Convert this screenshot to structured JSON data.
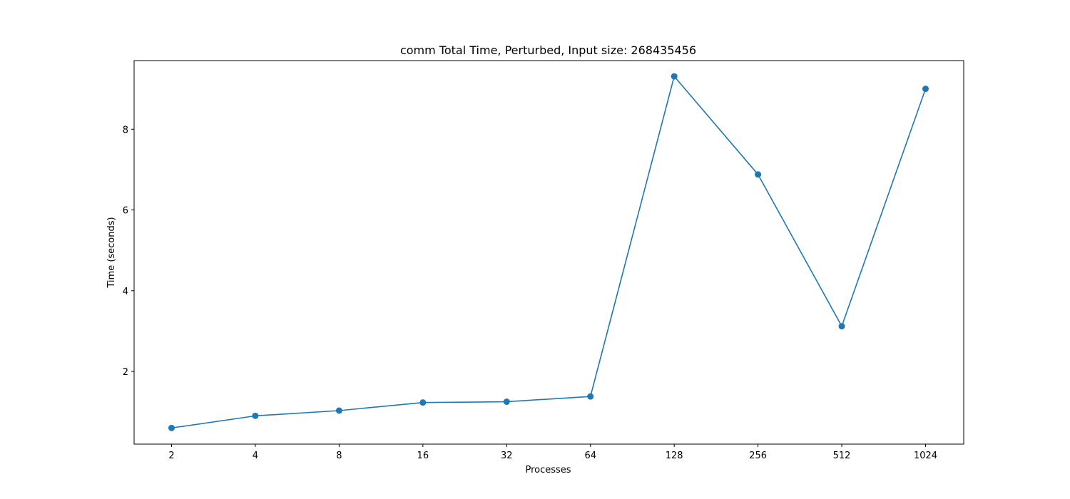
{
  "chart_data": {
    "type": "line",
    "title": "comm Total Time, Perturbed, Input size: 268435456",
    "xlabel": "Processes",
    "ylabel": "Time (seconds)",
    "categories": [
      "2",
      "4",
      "8",
      "16",
      "32",
      "64",
      "128",
      "256",
      "512",
      "1024"
    ],
    "series": [
      {
        "values": [
          0.6,
          0.9,
          1.03,
          1.23,
          1.25,
          1.38,
          9.31,
          6.88,
          3.12,
          9.0
        ]
      }
    ],
    "yticks": [
      2,
      4,
      6,
      8
    ],
    "ylim": [
      0.2,
      9.7
    ],
    "grid": false,
    "legend": "none",
    "colors": {
      "line": "#1f77b4",
      "axes": "#000000"
    }
  }
}
